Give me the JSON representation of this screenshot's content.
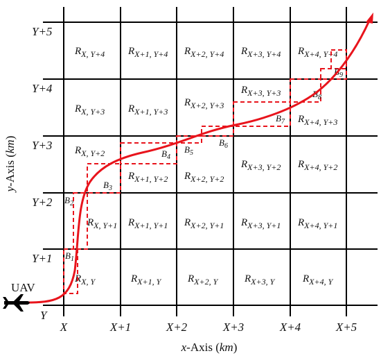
{
  "axes": {
    "x_title_main": "x",
    "x_title_rest": "-Axis (",
    "x_title_unit": "km",
    "x_title_close": ")",
    "y_title_main": "y",
    "y_title_rest": "-Axis (",
    "y_title_unit": "km",
    "y_title_close": ")",
    "x_ticks": [
      "X",
      "X+1",
      "X+2",
      "X+3",
      "X+4",
      "X+5"
    ],
    "y_ticks": [
      "Y",
      "Y+1",
      "Y+2",
      "Y+3",
      "Y+4",
      "Y+5"
    ]
  },
  "uav_label": "UAV",
  "cells": [
    [
      "R",
      "X, Y"
    ],
    [
      "R",
      "X+1, Y"
    ],
    [
      "R",
      "X+2, Y"
    ],
    [
      "R",
      "X+3, Y"
    ],
    [
      "R",
      "X+4, Y"
    ],
    [
      "R",
      "X, Y+1"
    ],
    [
      "R",
      "X+1, Y+1"
    ],
    [
      "R",
      "X+2, Y+1"
    ],
    [
      "R",
      "X+3, Y+1"
    ],
    [
      "R",
      "X+4, Y+1"
    ],
    [
      "R",
      "X, Y+2"
    ],
    [
      "R",
      "X+1, Y+2"
    ],
    [
      "R",
      "X+2, Y+2"
    ],
    [
      "R",
      "X+3, Y+2"
    ],
    [
      "R",
      "X+4, Y+2"
    ],
    [
      "R",
      "X, Y+3"
    ],
    [
      "R",
      "X+1, Y+3"
    ],
    [
      "R",
      "X+2, Y+3"
    ],
    [
      "R",
      "X+3, Y+3"
    ],
    [
      "R",
      "X+4, Y+3"
    ],
    [
      "R",
      "X, Y+4"
    ],
    [
      "R",
      "X+1, Y+4"
    ],
    [
      "R",
      "X+2, Y+4"
    ],
    [
      "R",
      "X+3, Y+4"
    ],
    [
      "R",
      "X+4, Y+4"
    ]
  ],
  "boxes": [
    [
      "B",
      "1"
    ],
    [
      "B",
      "2"
    ],
    [
      "B",
      "3"
    ],
    [
      "B",
      "4"
    ],
    [
      "B",
      "5"
    ],
    [
      "B",
      "6"
    ],
    [
      "B",
      "7"
    ],
    [
      "B",
      "8"
    ],
    [
      "B",
      "9"
    ]
  ],
  "colors": {
    "grid": "#000000",
    "path": "#e8141c",
    "boxes": "#e8141c"
  }
}
